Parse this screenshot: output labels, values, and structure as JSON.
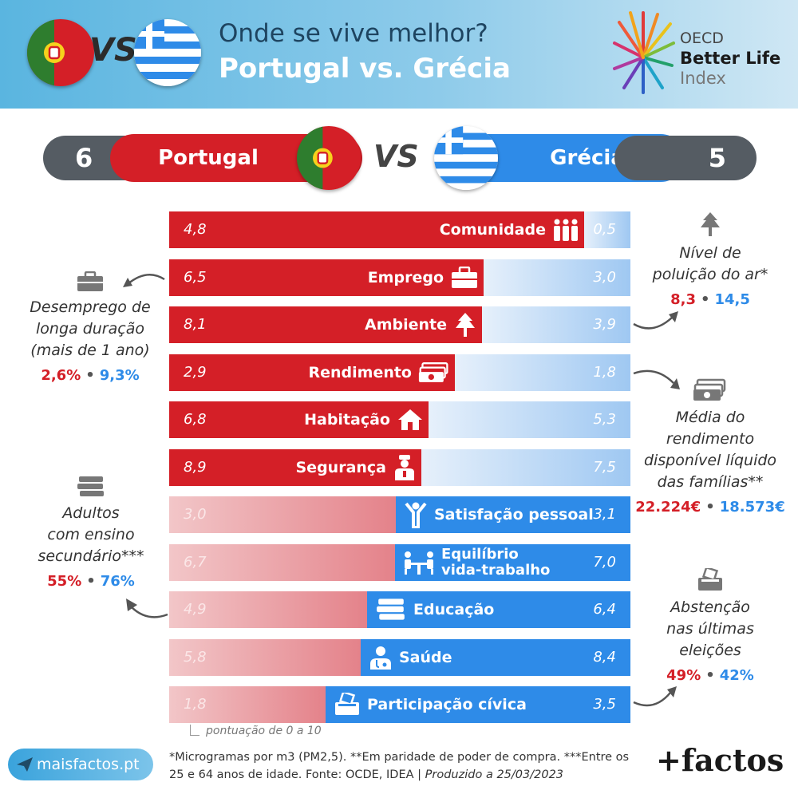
{
  "header": {
    "title": "Onde se vive melhor?",
    "subtitle": "Portugal vs. Grécia",
    "vs": "VS",
    "oecd_line1": "OECD",
    "oecd_line2": "Better Life",
    "oecd_line3": "Index"
  },
  "scoreboard": {
    "left_score": "6",
    "left_country": "Portugal",
    "vs": "VS",
    "right_country": "Grécia",
    "right_score": "5"
  },
  "colors": {
    "portugal": "#d41f27",
    "greece": "#2e8be8",
    "dark": "#555c63"
  },
  "chart_data": {
    "type": "bar",
    "orientation": "horizontal-diverging",
    "categories": [
      "Comunidade",
      "Emprego",
      "Ambiente",
      "Rendimento",
      "Habitação",
      "Segurança",
      "Satisfação pessoal",
      "Equilíbrio vida-trabalho",
      "Educação",
      "Saúde",
      "Participação cívica"
    ],
    "series": [
      {
        "name": "Portugal",
        "values": [
          4.8,
          6.5,
          8.1,
          2.9,
          6.8,
          8.9,
          3.0,
          6.7,
          4.9,
          5.8,
          1.8
        ],
        "labels": [
          "4,8",
          "6,5",
          "8,1",
          "2,9",
          "6,8",
          "8,9",
          "3,0",
          "6,7",
          "4,9",
          "5,8",
          "1,8"
        ]
      },
      {
        "name": "Grécia",
        "values": [
          0.5,
          3.0,
          3.9,
          1.8,
          5.3,
          7.5,
          3.1,
          7.0,
          6.4,
          8.4,
          3.5
        ],
        "labels": [
          "0,5",
          "3,0",
          "3,9",
          "1,8",
          "5,3",
          "7,5",
          "3,1",
          "7,0",
          "6,4",
          "8,4",
          "3,5"
        ]
      }
    ],
    "winner": [
      "Portugal",
      "Portugal",
      "Portugal",
      "Portugal",
      "Portugal",
      "Portugal",
      "Grécia",
      "Grécia",
      "Grécia",
      "Grécia",
      "Grécia"
    ],
    "category_icons": [
      "people-icon",
      "briefcase-icon",
      "tree-icon",
      "money-icon",
      "house-icon",
      "police-icon",
      "person-arms-up-icon",
      "people-at-table-icon",
      "books-icon",
      "doctor-icon",
      "ballot-box-icon"
    ],
    "scale_note": "pontuação de 0 a 10",
    "xlim": [
      0,
      10
    ]
  },
  "notes": {
    "unemployment": {
      "text_lines": [
        "Desemprego de",
        "longa duração",
        "(mais de 1 ano)"
      ],
      "pt": "2,6%",
      "gr": "9,3%",
      "icon": "briefcase-icon"
    },
    "air": {
      "text_lines": [
        "Nível de",
        "poluição do ar*"
      ],
      "pt": "8,3",
      "gr": "14,5",
      "icon": "tree-icon"
    },
    "income": {
      "text_lines": [
        "Média do",
        "rendimento",
        "disponível líquido",
        "das famílias**"
      ],
      "pt": "22.224€",
      "gr": "18.573€",
      "icon": "money-icon"
    },
    "education": {
      "text_lines": [
        "Adultos",
        "com ensino",
        "secundário***"
      ],
      "pt": "55%",
      "gr": "76%",
      "icon": "books-icon"
    },
    "abstention": {
      "text_lines": [
        "Abstenção",
        "nas últimas",
        "eleições"
      ],
      "pt": "49%",
      "gr": "42%",
      "icon": "ballot-box-icon"
    },
    "separator": "•"
  },
  "footer": {
    "site": "maisfactos.pt",
    "footnote_main": "*Microgramas por m3 (PM2,5). **Em paridade de poder de compra. ***Entre os 25 e 64 anos de idade. Fonte: OCDE, IDEA | ",
    "footnote_date": "Produzido a 25/03/2023",
    "brand": "+factos"
  }
}
